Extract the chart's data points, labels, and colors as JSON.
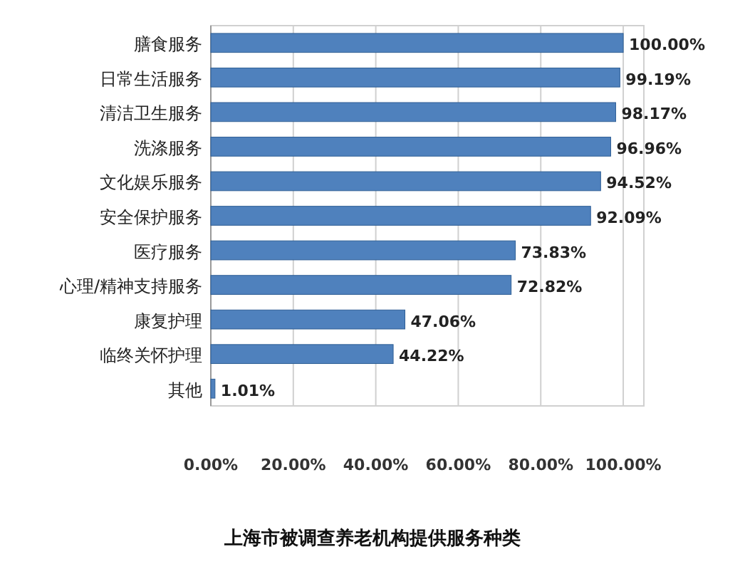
{
  "chart_data": {
    "type": "bar",
    "orientation": "horizontal",
    "title": "上海市被调查养老机构提供服务种类",
    "categories": [
      "膳食服务",
      "日常生活服务",
      "清洁卫生服务",
      "洗涤服务",
      "文化娱乐服务",
      "安全保护服务",
      "医疗服务",
      "心理/精神支持服务",
      "康复护理",
      "临终关怀护理",
      "其他"
    ],
    "values": [
      100,
      99.19,
      98.17,
      96.96,
      94.52,
      92.09,
      73.83,
      72.82,
      47.06,
      44.22,
      1.01
    ],
    "value_labels": [
      "100.00%",
      "99.19%",
      "98.17%",
      "96.96%",
      "94.52%",
      "92.09%",
      "73.83%",
      "72.82%",
      "47.06%",
      "44.22%",
      "1.01%"
    ],
    "color": "#4f81bd",
    "xlim": [
      0,
      105
    ],
    "xticks": [
      {
        "value": 0,
        "label": "0.00%"
      },
      {
        "value": 20,
        "label": "20.00%"
      },
      {
        "value": 40,
        "label": "40.00%"
      },
      {
        "value": 60,
        "label": "60.00%"
      },
      {
        "value": 80,
        "label": "80.00%"
      },
      {
        "value": 100,
        "label": "100.00%"
      }
    ],
    "grid": "x"
  }
}
